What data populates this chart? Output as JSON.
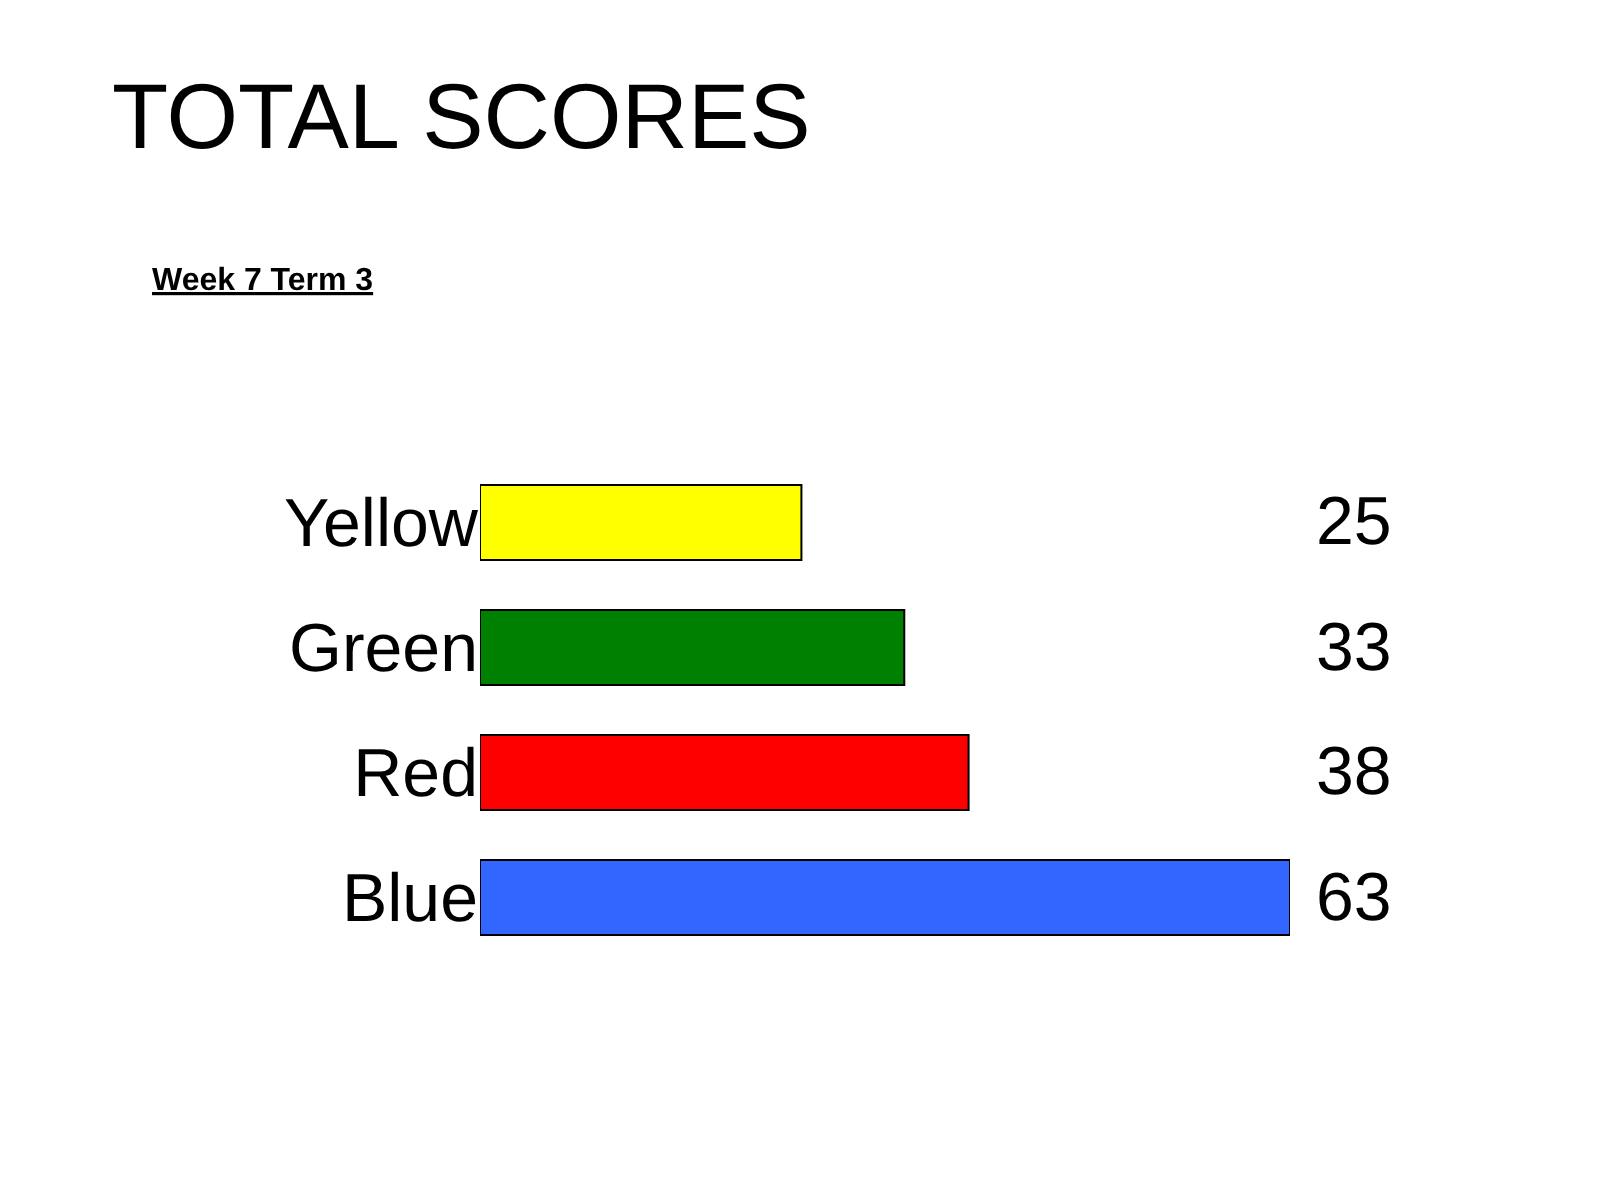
{
  "chart_data": {
    "type": "bar",
    "orientation": "horizontal",
    "title": "TOTAL SCORES",
    "subtitle": "Week 7 Term 3",
    "categories": [
      "Yellow",
      "Green",
      "Red",
      "Blue"
    ],
    "values": [
      25,
      33,
      38,
      63
    ],
    "colors": [
      "#ffff00",
      "#008000",
      "#ff0000",
      "#3366ff"
    ],
    "data_labels": true,
    "legend": false
  }
}
